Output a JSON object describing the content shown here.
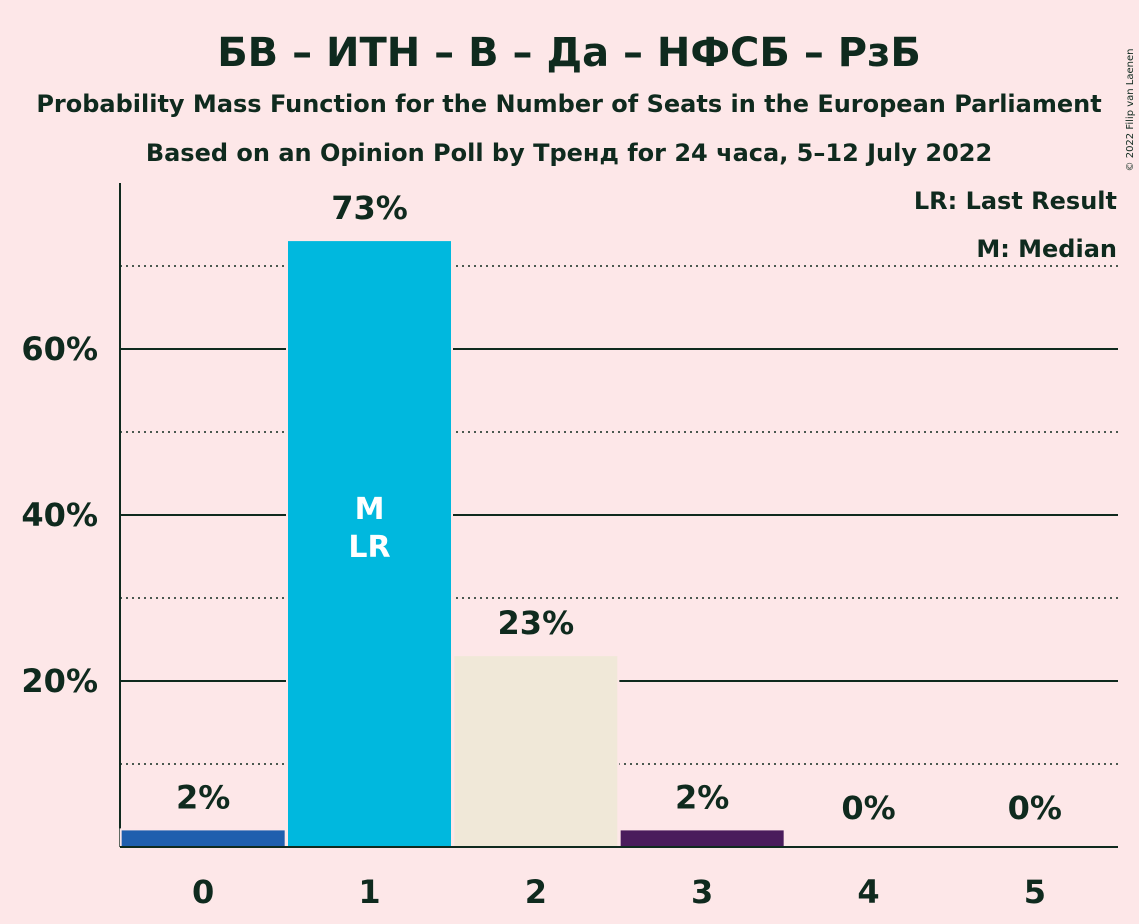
{
  "chart_data": {
    "type": "bar",
    "title": "БВ – ИТН – В – Да – НФСБ – РзБ",
    "subtitle": "Probability Mass Function for the Number of Seats in the European Parliament",
    "subtitle2": "Based on an Opinion Poll by Тренд for 24 часа, 5–12 July 2022",
    "categories": [
      "0",
      "1",
      "2",
      "3",
      "4",
      "5"
    ],
    "values": [
      2,
      73,
      23,
      2,
      0,
      0
    ],
    "value_labels": [
      "2%",
      "73%",
      "23%",
      "2%",
      "0%",
      "0%"
    ],
    "bar_colors": [
      "#1F5FAE",
      "#00B8DE",
      "#F0E8D8",
      "#4A1C5C",
      "#4A1C5C",
      "#4A1C5C"
    ],
    "in_bar_labels": [
      {
        "category": "1",
        "lines": [
          "M",
          "LR"
        ]
      }
    ],
    "y_ticks": [
      20,
      40,
      60
    ],
    "y_tick_labels": [
      "20%",
      "40%",
      "60%"
    ],
    "y_minor_ticks": [
      10,
      30,
      50,
      70
    ],
    "ylim": [
      0,
      80
    ],
    "grid": true,
    "legend": {
      "placement": "top-right",
      "items": [
        "LR: Last Result",
        "M: Median"
      ]
    },
    "copyright": "© 2022 Filip van Laenen"
  }
}
